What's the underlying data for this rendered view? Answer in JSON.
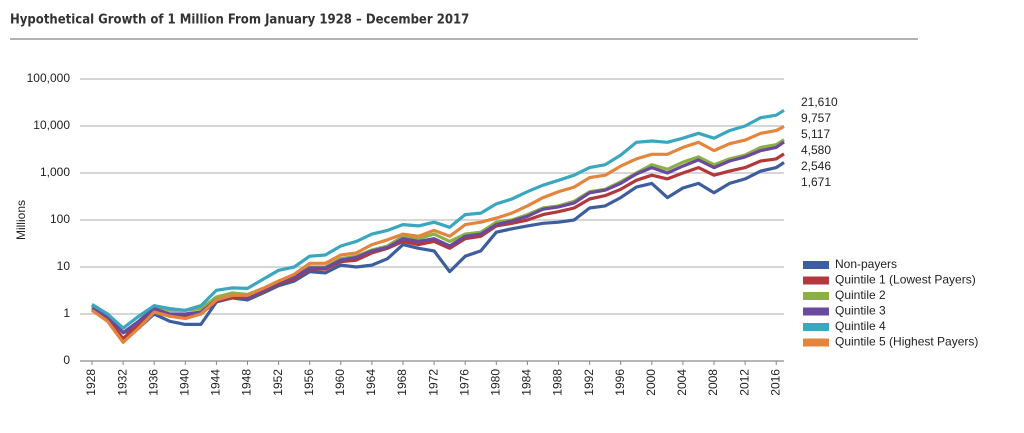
{
  "chart_data": {
    "type": "line",
    "title": "Hypothetical Growth of 1 Million From January 1928 – December 2017",
    "y_label": "Millions",
    "x": [
      1928,
      1930,
      1932,
      1934,
      1936,
      1938,
      1940,
      1942,
      1944,
      1946,
      1948,
      1950,
      1952,
      1954,
      1956,
      1958,
      1960,
      1962,
      1964,
      1966,
      1968,
      1970,
      1972,
      1974,
      1976,
      1978,
      1980,
      1982,
      1984,
      1986,
      1988,
      1990,
      1992,
      1994,
      1996,
      1998,
      2000,
      2002,
      2004,
      2006,
      2008,
      2010,
      2012,
      2014,
      2016,
      2017
    ],
    "xlim": [
      1928,
      2017
    ],
    "xticks": [
      1928,
      1932,
      1936,
      1940,
      1944,
      1948,
      1952,
      1956,
      1960,
      1964,
      1968,
      1972,
      1976,
      1980,
      1984,
      1988,
      1992,
      1996,
      2000,
      2004,
      2008,
      2012,
      2016
    ],
    "ylim": [
      0.1,
      100000
    ],
    "log_scale": true,
    "grid": true,
    "yticks": [
      {
        "value": 0.1,
        "label": "0"
      },
      1,
      10,
      100,
      {
        "value": 1000,
        "label": "1,000"
      },
      {
        "value": 10000,
        "label": "10,000"
      },
      {
        "value": 100000,
        "label": "100,000"
      }
    ],
    "legend": "right",
    "series": [
      {
        "name": "Non-payers",
        "color": "#3d5e9e",
        "values": [
          1.5,
          0.9,
          0.4,
          0.5,
          1.0,
          0.7,
          0.6,
          0.6,
          1.8,
          2.2,
          2.0,
          2.8,
          4,
          5,
          8,
          7.5,
          11,
          10,
          11,
          15,
          30,
          25,
          22,
          8,
          17,
          22,
          55,
          65,
          75,
          85,
          90,
          100,
          180,
          200,
          300,
          500,
          600,
          300,
          480,
          600,
          380,
          600,
          750,
          1100,
          1300,
          1671
        ],
        "value_labels": [
          null,
          null,
          null,
          null,
          null,
          null,
          null,
          null,
          null,
          null,
          null,
          null,
          null,
          null,
          null,
          null,
          null,
          null,
          null,
          null,
          null,
          null,
          null,
          null,
          null,
          null,
          null,
          null,
          null,
          null,
          null,
          null,
          null,
          null,
          null,
          null,
          null,
          null,
          null,
          null,
          null,
          null,
          null,
          null,
          null,
          "1,671"
        ]
      },
      {
        "name": "Quintile 1 (Lowest Payers)",
        "color": "#b2383d",
        "values": [
          1.2,
          0.8,
          0.3,
          0.6,
          1.2,
          0.9,
          0.9,
          1.0,
          1.9,
          2.2,
          2.2,
          3,
          4.5,
          5.5,
          9,
          9,
          13,
          14,
          20,
          25,
          35,
          30,
          35,
          25,
          40,
          45,
          75,
          85,
          100,
          130,
          150,
          180,
          280,
          330,
          450,
          700,
          900,
          750,
          1000,
          1300,
          900,
          1100,
          1300,
          1800,
          2000,
          2546
        ],
        "value_labels": [
          null,
          null,
          null,
          null,
          null,
          null,
          null,
          null,
          null,
          null,
          null,
          null,
          null,
          null,
          null,
          null,
          null,
          null,
          null,
          null,
          null,
          null,
          null,
          null,
          null,
          null,
          null,
          null,
          null,
          null,
          null,
          null,
          null,
          null,
          null,
          null,
          null,
          null,
          null,
          null,
          null,
          null,
          null,
          null,
          null,
          "2,546"
        ]
      },
      {
        "name": "Quintile 2",
        "color": "#8bb046",
        "values": [
          1.4,
          1.0,
          0.4,
          0.7,
          1.5,
          1.2,
          1.2,
          1.3,
          2.3,
          2.8,
          2.6,
          3.5,
          5,
          6.5,
          10,
          10,
          15,
          17,
          23,
          28,
          45,
          40,
          50,
          35,
          50,
          55,
          90,
          100,
          130,
          180,
          200,
          250,
          400,
          450,
          650,
          1000,
          1500,
          1200,
          1700,
          2200,
          1500,
          2000,
          2400,
          3500,
          4000,
          5117
        ],
        "value_labels": [
          null,
          null,
          null,
          null,
          null,
          null,
          null,
          null,
          null,
          null,
          null,
          null,
          null,
          null,
          null,
          null,
          null,
          null,
          null,
          null,
          null,
          null,
          null,
          null,
          null,
          null,
          null,
          null,
          null,
          null,
          null,
          null,
          null,
          null,
          null,
          null,
          null,
          null,
          null,
          null,
          null,
          null,
          null,
          null,
          null,
          "5,117"
        ]
      },
      {
        "name": "Quintile 3",
        "color": "#6a4a9c",
        "values": [
          1.3,
          0.9,
          0.4,
          0.7,
          1.3,
          1.0,
          1.0,
          1.1,
          2.0,
          2.4,
          2.3,
          3.2,
          4.8,
          6,
          9.5,
          9.5,
          14,
          16,
          22,
          26,
          40,
          35,
          40,
          28,
          45,
          50,
          80,
          95,
          120,
          170,
          190,
          230,
          380,
          430,
          600,
          950,
          1300,
          1000,
          1400,
          1900,
          1300,
          1800,
          2200,
          3000,
          3500,
          4580
        ],
        "value_labels": [
          null,
          null,
          null,
          null,
          null,
          null,
          null,
          null,
          null,
          null,
          null,
          null,
          null,
          null,
          null,
          null,
          null,
          null,
          null,
          null,
          null,
          null,
          null,
          null,
          null,
          null,
          null,
          null,
          null,
          null,
          null,
          null,
          null,
          null,
          null,
          null,
          null,
          null,
          null,
          null,
          null,
          null,
          null,
          null,
          null,
          "4,580"
        ]
      },
      {
        "name": "Quintile 4",
        "color": "#3aa6bf",
        "values": [
          1.6,
          1.0,
          0.5,
          0.9,
          1.5,
          1.3,
          1.2,
          1.5,
          3.2,
          3.6,
          3.5,
          5.5,
          8.5,
          10,
          17,
          18,
          28,
          35,
          50,
          60,
          80,
          75,
          90,
          70,
          130,
          140,
          220,
          280,
          400,
          550,
          700,
          900,
          1300,
          1500,
          2400,
          4500,
          4800,
          4500,
          5500,
          7000,
          5500,
          8000,
          10000,
          15000,
          17000,
          21610
        ],
        "value_labels": [
          null,
          null,
          null,
          null,
          null,
          null,
          null,
          null,
          null,
          null,
          null,
          null,
          null,
          null,
          null,
          null,
          null,
          null,
          null,
          null,
          null,
          null,
          null,
          null,
          null,
          null,
          null,
          null,
          null,
          null,
          null,
          null,
          null,
          null,
          null,
          null,
          null,
          null,
          null,
          null,
          null,
          null,
          null,
          null,
          null,
          "21,610"
        ]
      },
      {
        "name": "Quintile 5 (Highest Payers)",
        "color": "#e3853c",
        "values": [
          1.2,
          0.7,
          0.25,
          0.5,
          1.1,
          0.9,
          0.8,
          1.0,
          2.0,
          2.5,
          2.5,
          3.5,
          5,
          7,
          12,
          12,
          18,
          20,
          30,
          38,
          50,
          45,
          60,
          45,
          80,
          90,
          110,
          140,
          200,
          300,
          400,
          500,
          800,
          900,
          1400,
          2000,
          2500,
          2500,
          3500,
          4500,
          3000,
          4200,
          5000,
          7000,
          8000,
          9757
        ],
        "value_labels": [
          null,
          null,
          null,
          null,
          null,
          null,
          null,
          null,
          null,
          null,
          null,
          null,
          null,
          null,
          null,
          null,
          null,
          null,
          null,
          null,
          null,
          null,
          null,
          null,
          null,
          null,
          null,
          null,
          null,
          null,
          null,
          null,
          null,
          null,
          null,
          null,
          null,
          null,
          null,
          null,
          null,
          null,
          null,
          null,
          null,
          "9,757"
        ]
      }
    ]
  }
}
